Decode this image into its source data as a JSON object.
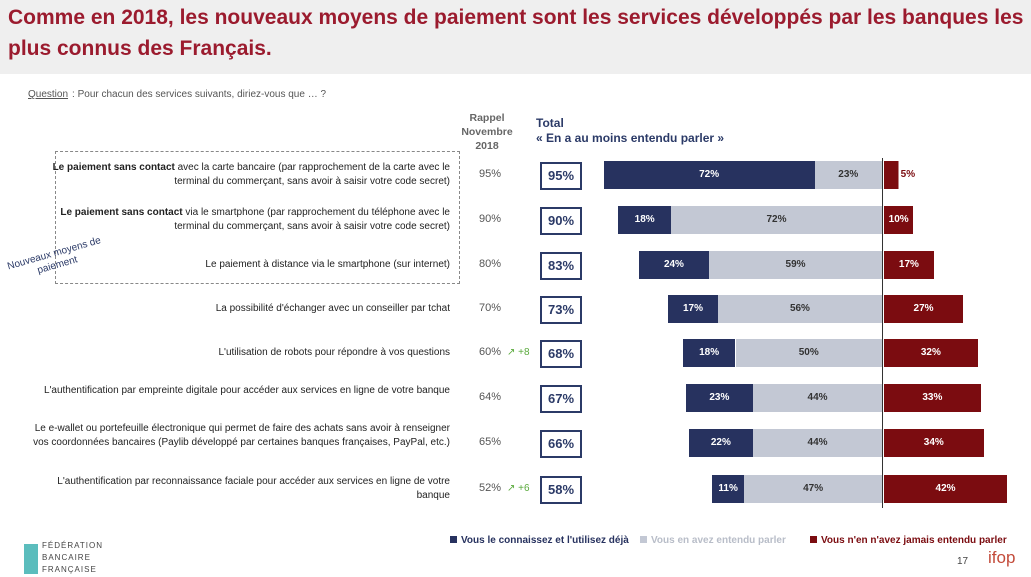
{
  "title": "Comme en 2018, les nouveaux moyens de paiement sont les services développés par les banques les plus connus des Français.",
  "question_label": "Question",
  "question": ": Pour chacun des services suivants, diriez-vous que … ?",
  "rappel_header": "Rappel Novembre 2018",
  "total_header": "Total",
  "total_sub": "« En a au moins entendu parler »",
  "group_label": "Nouveaux moyens de paiement",
  "colors": {
    "blue": "#27325f",
    "gray": "#c3c8d4",
    "red": "#7b0c10"
  },
  "chart_data": {
    "type": "bar",
    "stacked": true,
    "series": [
      {
        "name": "Vous le connaissez et l'utilisez déjà"
      },
      {
        "name": "Vous en avez entendu parler"
      },
      {
        "name": "Vous n'en n'avez jamais entendu parler"
      }
    ],
    "rows": [
      {
        "bold": "Le paiement sans contact",
        "label": " avec la carte bancaire (par rapprochement de la carte avec le terminal du commerçant, sans avoir à saisir votre code secret)",
        "rappel": "95%",
        "evo": "",
        "total": "95%",
        "values": [
          72,
          23,
          5
        ]
      },
      {
        "bold": "Le paiement sans contact",
        "label": " via le smartphone (par rapprochement du téléphone avec le terminal du commerçant, sans avoir à saisir votre code secret)",
        "rappel": "90%",
        "evo": "",
        "total": "90%",
        "values": [
          18,
          72,
          10
        ]
      },
      {
        "bold": "",
        "label": "Le paiement à distance via le smartphone (sur internet)",
        "rappel": "80%",
        "evo": "",
        "total": "83%",
        "values": [
          24,
          59,
          17
        ]
      },
      {
        "bold": "",
        "label": "La possibilité d'échanger avec un conseiller par tchat",
        "rappel": "70%",
        "evo": "",
        "total": "73%",
        "values": [
          17,
          56,
          27
        ]
      },
      {
        "bold": "",
        "label": "L'utilisation de robots pour répondre à vos questions",
        "rappel": "60%",
        "evo": "↗ +8",
        "total": "68%",
        "values": [
          18,
          50,
          32
        ]
      },
      {
        "bold": "",
        "label": "L'authentification par empreinte digitale pour accéder aux services en ligne de votre banque",
        "rappel": "64%",
        "evo": "",
        "total": "67%",
        "values": [
          23,
          44,
          33
        ]
      },
      {
        "bold": "",
        "label": "Le e-wallet ou portefeuille électronique qui permet de faire des achats sans avoir à renseigner vos coordonnées bancaires (Paylib développé par certaines banques françaises, PayPal, etc.)",
        "rappel": "65%",
        "evo": "",
        "total": "66%",
        "values": [
          22,
          44,
          34
        ]
      },
      {
        "bold": "",
        "label": "L'authentification par reconnaissance faciale pour accéder aux services en ligne de votre banque",
        "rappel": "52%",
        "evo": "↗ +6",
        "total": "58%",
        "values": [
          11,
          47,
          42
        ]
      }
    ]
  },
  "footer": {
    "logo": "FÉDÉRATION BANCAIRE FRANÇAISE",
    "page": "17",
    "brand": "ifop"
  }
}
